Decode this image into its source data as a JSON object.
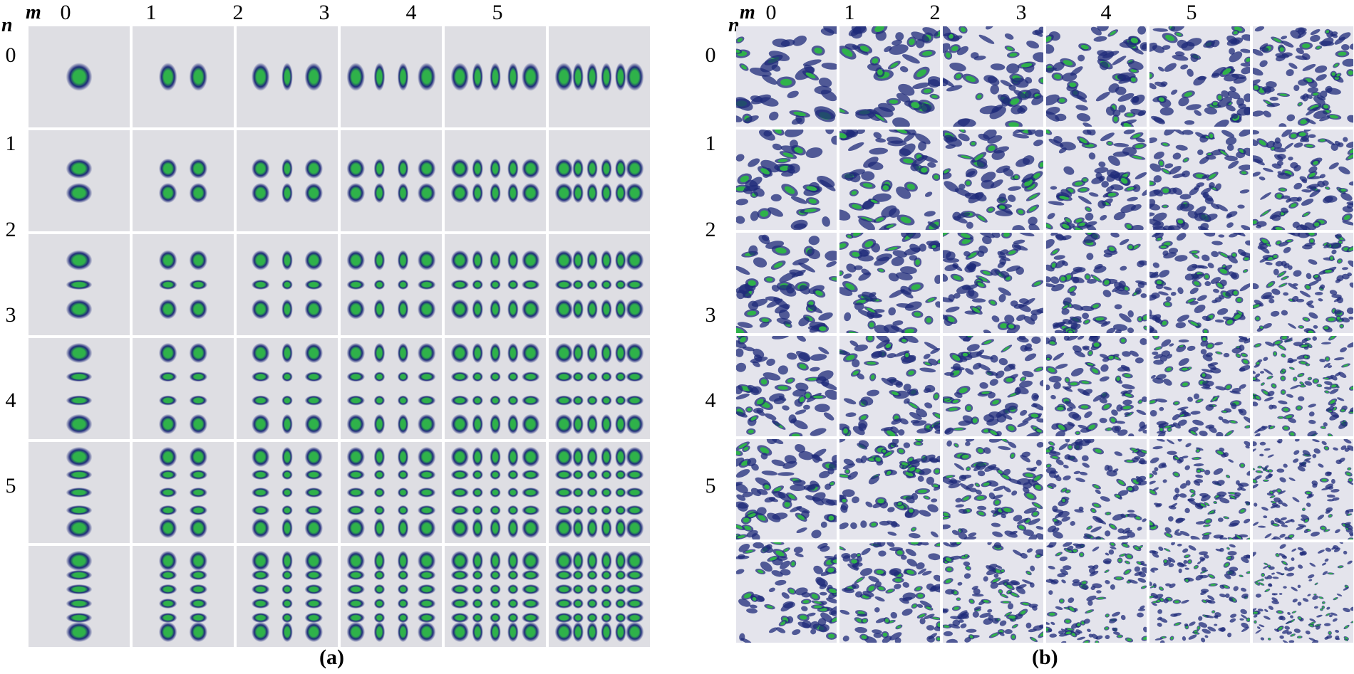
{
  "panel_a": {
    "m_symbol": "m",
    "n_symbol": "n",
    "m_values": [
      "0",
      "1",
      "2",
      "3",
      "4",
      "5"
    ],
    "n_values": [
      "0",
      "1",
      "2",
      "3",
      "4",
      "5"
    ],
    "caption": "(a)"
  },
  "panel_b": {
    "m_symbol": "m",
    "n_symbol": "n",
    "m_values": [
      "0",
      "1",
      "2",
      "3",
      "4",
      "5"
    ],
    "n_values": [
      "0",
      "1",
      "2",
      "3",
      "4",
      "5"
    ],
    "caption": "(b)"
  },
  "colors": {
    "lobe_core": "#2fb24a",
    "lobe_edge": "#1f2b7a",
    "background_a": "#dedee3",
    "background_b": "#e4e4ec"
  }
}
